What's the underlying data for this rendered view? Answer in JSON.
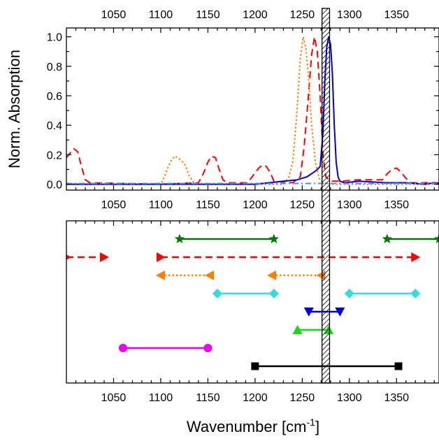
{
  "chart_data": [
    {
      "type": "line",
      "panel": "top",
      "xlabel_main": "Wavenumber [cm",
      "xlabel_sup": "-1",
      "xlabel_end": "]",
      "ylabel": "Norm. Absorption",
      "xlim": [
        1000,
        1395
      ],
      "ylim": [
        -0.04,
        1.06
      ],
      "x_ticks": [
        "1050",
        "1100",
        "1150",
        "1200",
        "1250",
        "1300",
        "1350"
      ],
      "y_ticks": [
        "0.0",
        "0.2",
        "0.4",
        "0.6",
        "0.8",
        "1.0"
      ],
      "grid": false,
      "series": [
        {
          "color": "#ff0000",
          "style": "dashed",
          "x": [
            1000,
            1005,
            1008,
            1012,
            1016,
            1020,
            1025,
            1100,
            1140,
            1145,
            1150,
            1154,
            1158,
            1162,
            1166,
            1170,
            1192,
            1198,
            1204,
            1208,
            1212,
            1216,
            1220,
            1240,
            1248,
            1252,
            1256,
            1260,
            1263,
            1266,
            1269,
            1272,
            1275,
            1280,
            1290,
            1310,
            1335,
            1340,
            1345,
            1350,
            1355,
            1360,
            1365,
            1395
          ],
          "y": [
            0.18,
            0.22,
            0.24,
            0.22,
            0.12,
            0.03,
            0.01,
            0.0,
            0.01,
            0.07,
            0.15,
            0.19,
            0.18,
            0.1,
            0.03,
            0.01,
            0.01,
            0.06,
            0.11,
            0.13,
            0.12,
            0.08,
            0.02,
            0.01,
            0.05,
            0.25,
            0.55,
            0.88,
            1.0,
            0.9,
            0.6,
            0.2,
            0.05,
            0.02,
            0.02,
            0.03,
            0.03,
            0.07,
            0.1,
            0.11,
            0.08,
            0.04,
            0.01,
            0.01
          ]
        },
        {
          "color": "#ff8000",
          "style": "dotted",
          "x": [
            1000,
            1100,
            1104,
            1108,
            1112,
            1115,
            1118,
            1122,
            1126,
            1130,
            1135,
            1140,
            1230,
            1236,
            1240,
            1244,
            1248,
            1251,
            1254,
            1257,
            1260,
            1264,
            1268,
            1272,
            1280,
            1395
          ],
          "y": [
            0.0,
            0.0,
            0.05,
            0.12,
            0.17,
            0.19,
            0.18,
            0.16,
            0.13,
            0.06,
            0.01,
            0.0,
            0.0,
            0.05,
            0.15,
            0.45,
            0.85,
            1.0,
            0.92,
            0.7,
            0.4,
            0.15,
            0.04,
            0.01,
            0.0,
            0.0
          ]
        },
        {
          "color": "#0000dd",
          "style": "solid",
          "x": [
            1000,
            1200,
            1230,
            1245,
            1255,
            1262,
            1266,
            1269,
            1272,
            1274,
            1276,
            1278,
            1280,
            1282,
            1284,
            1286,
            1288,
            1290,
            1295,
            1310,
            1340,
            1360,
            1380,
            1390,
            1395
          ],
          "y": [
            0.0,
            0.0,
            0.02,
            0.03,
            0.05,
            0.08,
            0.1,
            0.12,
            0.35,
            0.7,
            0.93,
            1.0,
            0.95,
            0.75,
            0.4,
            0.15,
            0.05,
            0.02,
            0.01,
            0.02,
            0.01,
            0.01,
            0.0,
            0.01,
            0.0
          ]
        },
        {
          "color": "#3399ff",
          "style": "dashdot",
          "x": [
            1000,
            1395
          ],
          "y": [
            0.005,
            0.005
          ]
        }
      ]
    },
    {
      "type": "range",
      "panel": "bottom",
      "xlim": [
        1000,
        1395
      ],
      "x_ticks": [
        "1050",
        "1100",
        "1150",
        "1200",
        "1250",
        "1300",
        "1350"
      ],
      "rows": [
        {
          "color": "#007700",
          "style": "solid",
          "marker": "star",
          "row": 0,
          "segments": [
            [
              1120,
              1220
            ],
            [
              1340,
              1395
            ]
          ]
        },
        {
          "color": "#ff0000",
          "style": "dashed",
          "marker": "triangle-right",
          "row": 1,
          "segments": [
            [
              1000,
              1040
            ],
            [
              1100,
              1370
            ]
          ]
        },
        {
          "color": "#ff8000",
          "style": "dotted",
          "marker": "triangle-left",
          "row": 2,
          "segments": [
            [
              1100,
              1152
            ],
            [
              1218,
              1270
            ]
          ]
        },
        {
          "color": "#33dddd",
          "style": "solid",
          "marker": "diamond",
          "row": 3,
          "segments": [
            [
              1160,
              1220
            ],
            [
              1300,
              1370
            ]
          ]
        },
        {
          "color": "#0000dd",
          "style": "solid",
          "marker": "triangle-down",
          "row": 4,
          "segments": [
            [
              1257,
              1290
            ]
          ]
        },
        {
          "color": "#11dd11",
          "style": "solid",
          "marker": "triangle-up",
          "row": 5,
          "segments": [
            [
              1245,
              1278
            ]
          ]
        },
        {
          "color": "#ee00ee",
          "style": "solid",
          "marker": "circle",
          "row": 6,
          "segments": [
            [
              1060,
              1150
            ]
          ]
        },
        {
          "color": "#000000",
          "style": "solid",
          "marker": "square",
          "row": 7,
          "segments": [
            [
              1200,
              1352
            ]
          ]
        }
      ],
      "band": {
        "x": [
          1271,
          1279
        ]
      }
    }
  ]
}
